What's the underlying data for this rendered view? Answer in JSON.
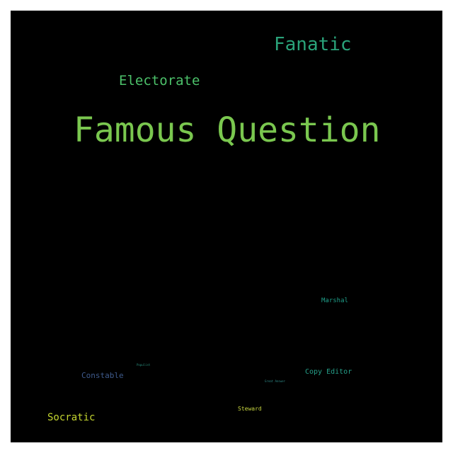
{
  "wordcloud": {
    "background": "#000000",
    "words": [
      {
        "text": "Famous Question",
        "color": "#7ac74f"
      },
      {
        "text": "Fanatic",
        "color": "#2aa37a"
      },
      {
        "text": "Electorate",
        "color": "#4cc16a"
      },
      {
        "text": "Marshal",
        "color": "#1f9e89"
      },
      {
        "text": "Copy Editor",
        "color": "#26a08a"
      },
      {
        "text": "Constable",
        "color": "#3e5a8c"
      },
      {
        "text": "Populist",
        "color": "#2a8f7e"
      },
      {
        "text": "Great Answer",
        "color": "#2f8a88"
      },
      {
        "text": "Steward",
        "color": "#c8d640"
      },
      {
        "text": "Socratic",
        "color": "#c4d530"
      }
    ]
  }
}
